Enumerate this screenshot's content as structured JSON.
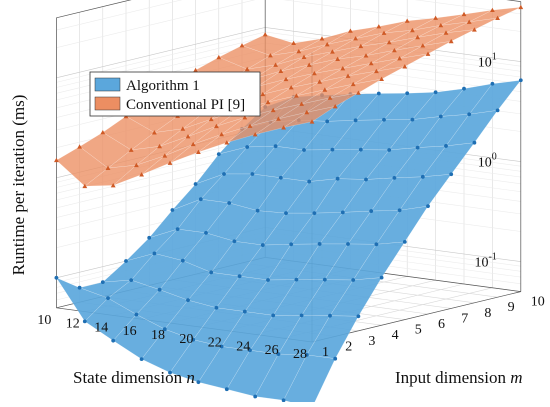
{
  "chart_data": {
    "type": "surface3d",
    "title": "",
    "zlabel": "Runtime per iteration (ms)",
    "xlabel": "State dimension n",
    "ylabel": "Input dimension m",
    "xlabel_text": "State dimension ",
    "xlabel_var": "n",
    "ylabel_text": "Input dimension ",
    "ylabel_var": "m",
    "z_scale": "log",
    "z_ticks": [
      {
        "value": 0.1,
        "base": "10",
        "exp": "-1"
      },
      {
        "value": 1,
        "base": "10",
        "exp": "0"
      },
      {
        "value": 10,
        "base": "10",
        "exp": "1"
      }
    ],
    "x_ticks": [
      "10",
      "12",
      "14",
      "16",
      "18",
      "20",
      "22",
      "24",
      "26",
      "28"
    ],
    "y_ticks": [
      "1",
      "2",
      "3",
      "4",
      "5",
      "6",
      "7",
      "8",
      "9",
      "10"
    ],
    "x": [
      10,
      12,
      14,
      16,
      18,
      20,
      22,
      24,
      26,
      28
    ],
    "y": [
      1,
      2,
      3,
      4,
      5,
      6,
      7,
      8,
      9,
      10
    ],
    "legend_position": "top-left",
    "grid": true,
    "series": [
      {
        "name": "Algorithm 1",
        "color": "#5ba7dc",
        "marker_color": "#1f6fb3",
        "marker": "circle",
        "z": [
          [
            0.1,
            0.07,
            0.07,
            0.1,
            0.15,
            0.25,
            0.4,
            0.7,
            1.1,
            1.6
          ],
          [
            0.04,
            0.06,
            0.08,
            0.13,
            0.2,
            0.35,
            0.55,
            0.9,
            1.4,
            2.2
          ],
          [
            0.028,
            0.045,
            0.07,
            0.12,
            0.2,
            0.35,
            0.6,
            1.0,
            1.6,
            2.5
          ],
          [
            0.02,
            0.035,
            0.06,
            0.1,
            0.18,
            0.32,
            0.6,
            1.0,
            1.7,
            2.8
          ],
          [
            0.016,
            0.03,
            0.055,
            0.1,
            0.18,
            0.33,
            0.6,
            1.1,
            1.9,
            3.1
          ],
          [
            0.014,
            0.028,
            0.055,
            0.1,
            0.2,
            0.36,
            0.7,
            1.2,
            2.1,
            3.4
          ],
          [
            0.013,
            0.028,
            0.055,
            0.11,
            0.22,
            0.4,
            0.75,
            1.3,
            2.3,
            3.8
          ],
          [
            0.012,
            0.028,
            0.06,
            0.12,
            0.24,
            0.45,
            0.85,
            1.5,
            2.7,
            4.5
          ],
          [
            0.012,
            0.03,
            0.065,
            0.13,
            0.26,
            0.5,
            0.95,
            1.7,
            3.1,
            5.5
          ],
          [
            0.011,
            0.03,
            0.07,
            0.15,
            0.3,
            0.6,
            1.1,
            2.0,
            3.7,
            6.5
          ]
        ]
      },
      {
        "name": "Conventional PI [9]",
        "color": "#ec8e62",
        "marker_color": "#cf5a26",
        "marker": "triangle",
        "z": [
          [
            1.5,
            1.8,
            2.2,
            2.8,
            3.5,
            4.5,
            5.5,
            6.5,
            7.5,
            8.5
          ],
          [
            0.9,
            1.2,
            1.6,
            2.1,
            2.7,
            3.5,
            4.4,
            5.4,
            6.5,
            7.6
          ],
          [
            1.0,
            1.4,
            1.9,
            2.5,
            3.3,
            4.2,
            5.3,
            6.5,
            7.8,
            9.2
          ],
          [
            1.4,
            1.9,
            2.6,
            3.4,
            4.4,
            5.6,
            7.0,
            8.5,
            10,
            12
          ],
          [
            2.0,
            2.7,
            3.6,
            4.6,
            5.8,
            7.2,
            8.8,
            10.5,
            12.5,
            14.5
          ],
          [
            2.8,
            3.7,
            4.8,
            6.0,
            7.4,
            9.0,
            11,
            13,
            15.5,
            18
          ],
          [
            3.8,
            4.9,
            6.2,
            7.6,
            9.2,
            11,
            13,
            15.5,
            18,
            21
          ],
          [
            5.0,
            6.3,
            7.8,
            9.5,
            11.5,
            13.5,
            16,
            19,
            22,
            25
          ],
          [
            6.4,
            8.0,
            9.8,
            11.8,
            14,
            16.5,
            19.5,
            23,
            26,
            30
          ],
          [
            8.0,
            10,
            12,
            14.5,
            17,
            20,
            23.5,
            27,
            31,
            35
          ]
        ]
      }
    ]
  }
}
